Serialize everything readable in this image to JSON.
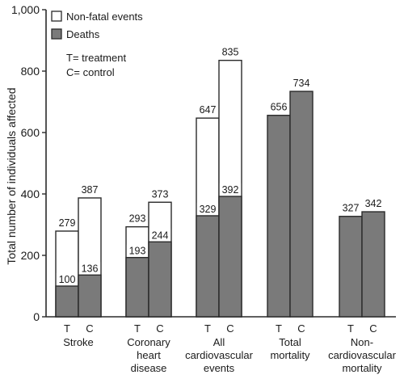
{
  "chart_data": {
    "type": "bar",
    "ylabel": "Total number of individuals affected",
    "ylim": [
      0,
      1000
    ],
    "yticks": [
      "0",
      "200",
      "400",
      "600",
      "800",
      "1,000"
    ],
    "grid": false,
    "legend": {
      "placement": "top-left",
      "entries": [
        {
          "label": "Non-fatal events",
          "color": "#ffffff"
        },
        {
          "label": "Deaths",
          "color": "#7a7a7a"
        }
      ],
      "notes": [
        "T= treatment",
        "C= control"
      ]
    },
    "colors": {
      "deaths": "#7a7a7a",
      "nonfatal": "#ffffff",
      "outline": "#2a2a2a"
    },
    "groups": [
      {
        "category": [
          "Stroke"
        ],
        "bars": [
          {
            "label": "T",
            "total": 279,
            "deaths": 100
          },
          {
            "label": "C",
            "total": 387,
            "deaths": 136
          }
        ]
      },
      {
        "category": [
          "Coronary",
          "heart",
          "disease"
        ],
        "bars": [
          {
            "label": "T",
            "total": 293,
            "deaths": 193
          },
          {
            "label": "C",
            "total": 373,
            "deaths": 244
          }
        ]
      },
      {
        "category": [
          "All",
          "cardiovascular",
          "events"
        ],
        "bars": [
          {
            "label": "T",
            "total": 647,
            "deaths": 329
          },
          {
            "label": "C",
            "total": 835,
            "deaths": 392
          }
        ]
      },
      {
        "category": [
          "Total",
          "mortality"
        ],
        "bars": [
          {
            "label": "T",
            "total": 656
          },
          {
            "label": "C",
            "total": 734
          }
        ]
      },
      {
        "category": [
          "Non-",
          "cardiovascular",
          "mortality"
        ],
        "bars": [
          {
            "label": "T",
            "total": 327
          },
          {
            "label": "C",
            "total": 342
          }
        ]
      }
    ]
  }
}
